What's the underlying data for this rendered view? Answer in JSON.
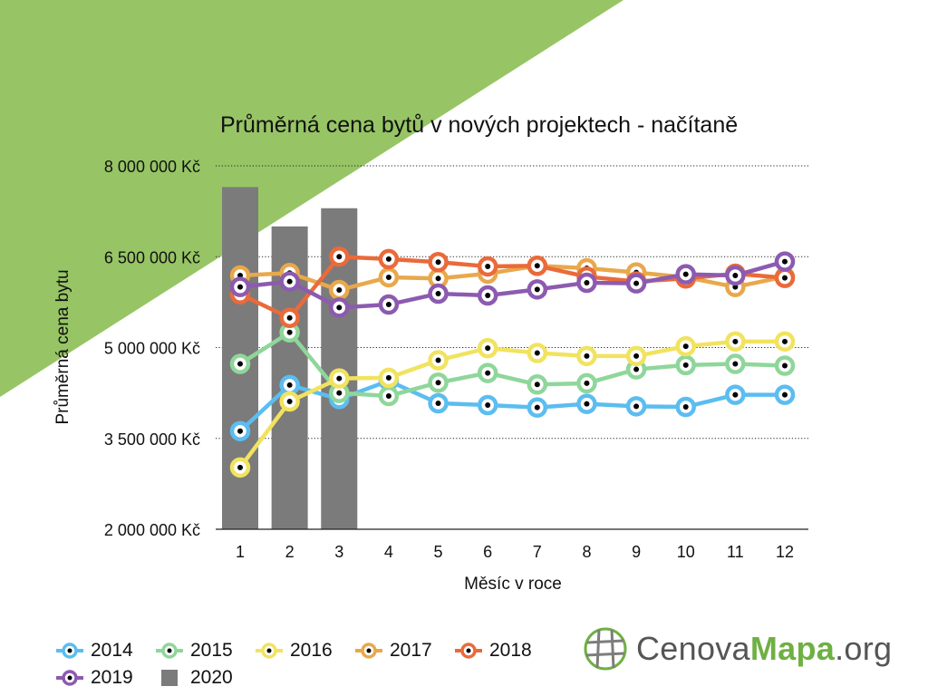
{
  "colors": {
    "background_triangle": "#97c565",
    "bars": "#7b7b7b",
    "grid": "#222222",
    "marker_dot": "#000000"
  },
  "chart_data": {
    "type": "line",
    "title": "Průměrná cena bytů v nových projektech - načítaně",
    "xlabel": "Měsíc v roce",
    "ylabel": "Průměrná cena bytu",
    "categories": [
      "1",
      "2",
      "3",
      "4",
      "5",
      "6",
      "7",
      "8",
      "9",
      "10",
      "11",
      "12"
    ],
    "ylim": [
      2000000,
      8000000
    ],
    "yticks": [
      2000000,
      3500000,
      5000000,
      6500000,
      8000000
    ],
    "ytick_labels": [
      "2 000 000 Kč",
      "3 500 000 Kč",
      "5 000 000 Kč",
      "6 500 000 Kč",
      "8 000 000 Kč"
    ],
    "grid": "horizontal dotted",
    "legend_position": "bottom-left",
    "series": [
      {
        "name": "2014",
        "type": "line",
        "color": "#5bbdf0",
        "values": [
          3620000,
          4380000,
          4150000,
          4450000,
          4080000,
          4050000,
          4010000,
          4070000,
          4030000,
          4020000,
          4220000,
          4220000
        ]
      },
      {
        "name": "2015",
        "type": "line",
        "color": "#8fd69a",
        "values": [
          4730000,
          5250000,
          4250000,
          4200000,
          4420000,
          4580000,
          4390000,
          4410000,
          4640000,
          4710000,
          4730000,
          4700000
        ]
      },
      {
        "name": "2016",
        "type": "line",
        "color": "#f1e35f",
        "values": [
          3020000,
          4110000,
          4490000,
          4500000,
          4790000,
          4990000,
          4910000,
          4860000,
          4860000,
          5020000,
          5100000,
          5100000
        ]
      },
      {
        "name": "2017",
        "type": "line",
        "color": "#e8a84c",
        "values": [
          6190000,
          6230000,
          5950000,
          6160000,
          6140000,
          6220000,
          6350000,
          6310000,
          6240000,
          6160000,
          6000000,
          6170000
        ]
      },
      {
        "name": "2018",
        "type": "line",
        "color": "#ea6a3a",
        "values": [
          5880000,
          5490000,
          6500000,
          6460000,
          6410000,
          6340000,
          6350000,
          6170000,
          6090000,
          6140000,
          6220000,
          6150000
        ]
      },
      {
        "name": "2019",
        "type": "line",
        "color": "#8c5bb0",
        "values": [
          6000000,
          6090000,
          5660000,
          5710000,
          5890000,
          5860000,
          5960000,
          6070000,
          6060000,
          6210000,
          6190000,
          6420000
        ]
      },
      {
        "name": "2020",
        "type": "bar",
        "color": "#7b7b7b",
        "values": [
          7650000,
          7000000,
          7300000,
          null,
          null,
          null,
          null,
          null,
          null,
          null,
          null,
          null
        ]
      }
    ]
  },
  "legend": [
    {
      "label": "2014",
      "color": "#5bbdf0",
      "kind": "line"
    },
    {
      "label": "2015",
      "color": "#8fd69a",
      "kind": "line"
    },
    {
      "label": "2016",
      "color": "#f1e35f",
      "kind": "line"
    },
    {
      "label": "2017",
      "color": "#e8a84c",
      "kind": "line"
    },
    {
      "label": "2018",
      "color": "#ea6a3a",
      "kind": "line"
    },
    {
      "label": "2019",
      "color": "#8c5bb0",
      "kind": "line"
    },
    {
      "label": "2020",
      "color": "#7b7b7b",
      "kind": "bar"
    }
  ],
  "brand": {
    "part1": "Cenova",
    "part2": "Mapa",
    "part3": ".org",
    "icon": "globe-icon"
  }
}
